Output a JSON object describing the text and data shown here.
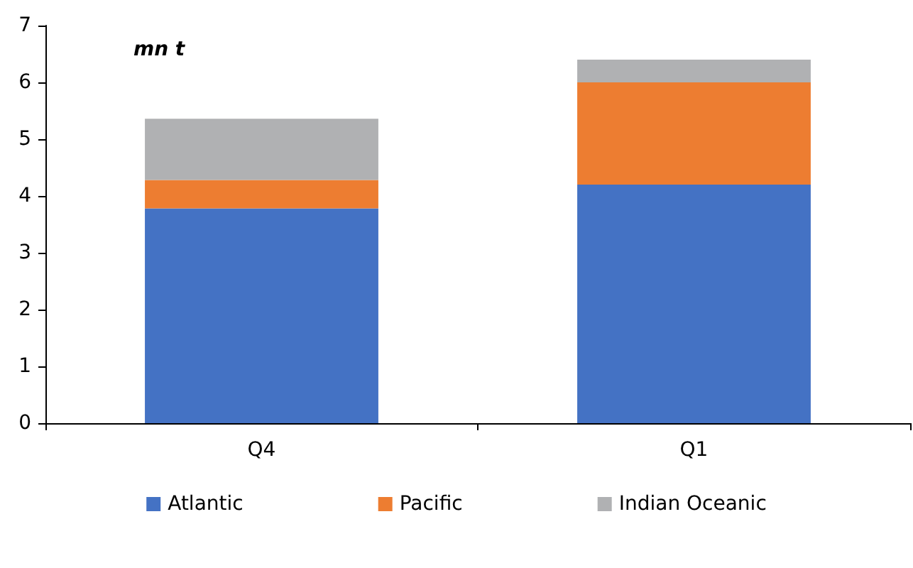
{
  "chart_data": {
    "type": "bar",
    "ylabel": "mn t",
    "stacked": true,
    "categories": [
      "Q4",
      "Q1"
    ],
    "series": [
      {
        "name": "Atlantic",
        "color": "#4472c4",
        "values": [
          3.78,
          4.2
        ]
      },
      {
        "name": "Pacific",
        "color": "#ed7d31",
        "values": [
          0.5,
          1.8
        ]
      },
      {
        "name": "Indian Oceanic",
        "color": "#b0b1b3",
        "values": [
          1.08,
          0.4
        ]
      }
    ],
    "ylim": [
      0,
      7
    ],
    "yticks": [
      0,
      1,
      2,
      3,
      4,
      5,
      6,
      7
    ],
    "grid": false,
    "legend": "bottom"
  }
}
